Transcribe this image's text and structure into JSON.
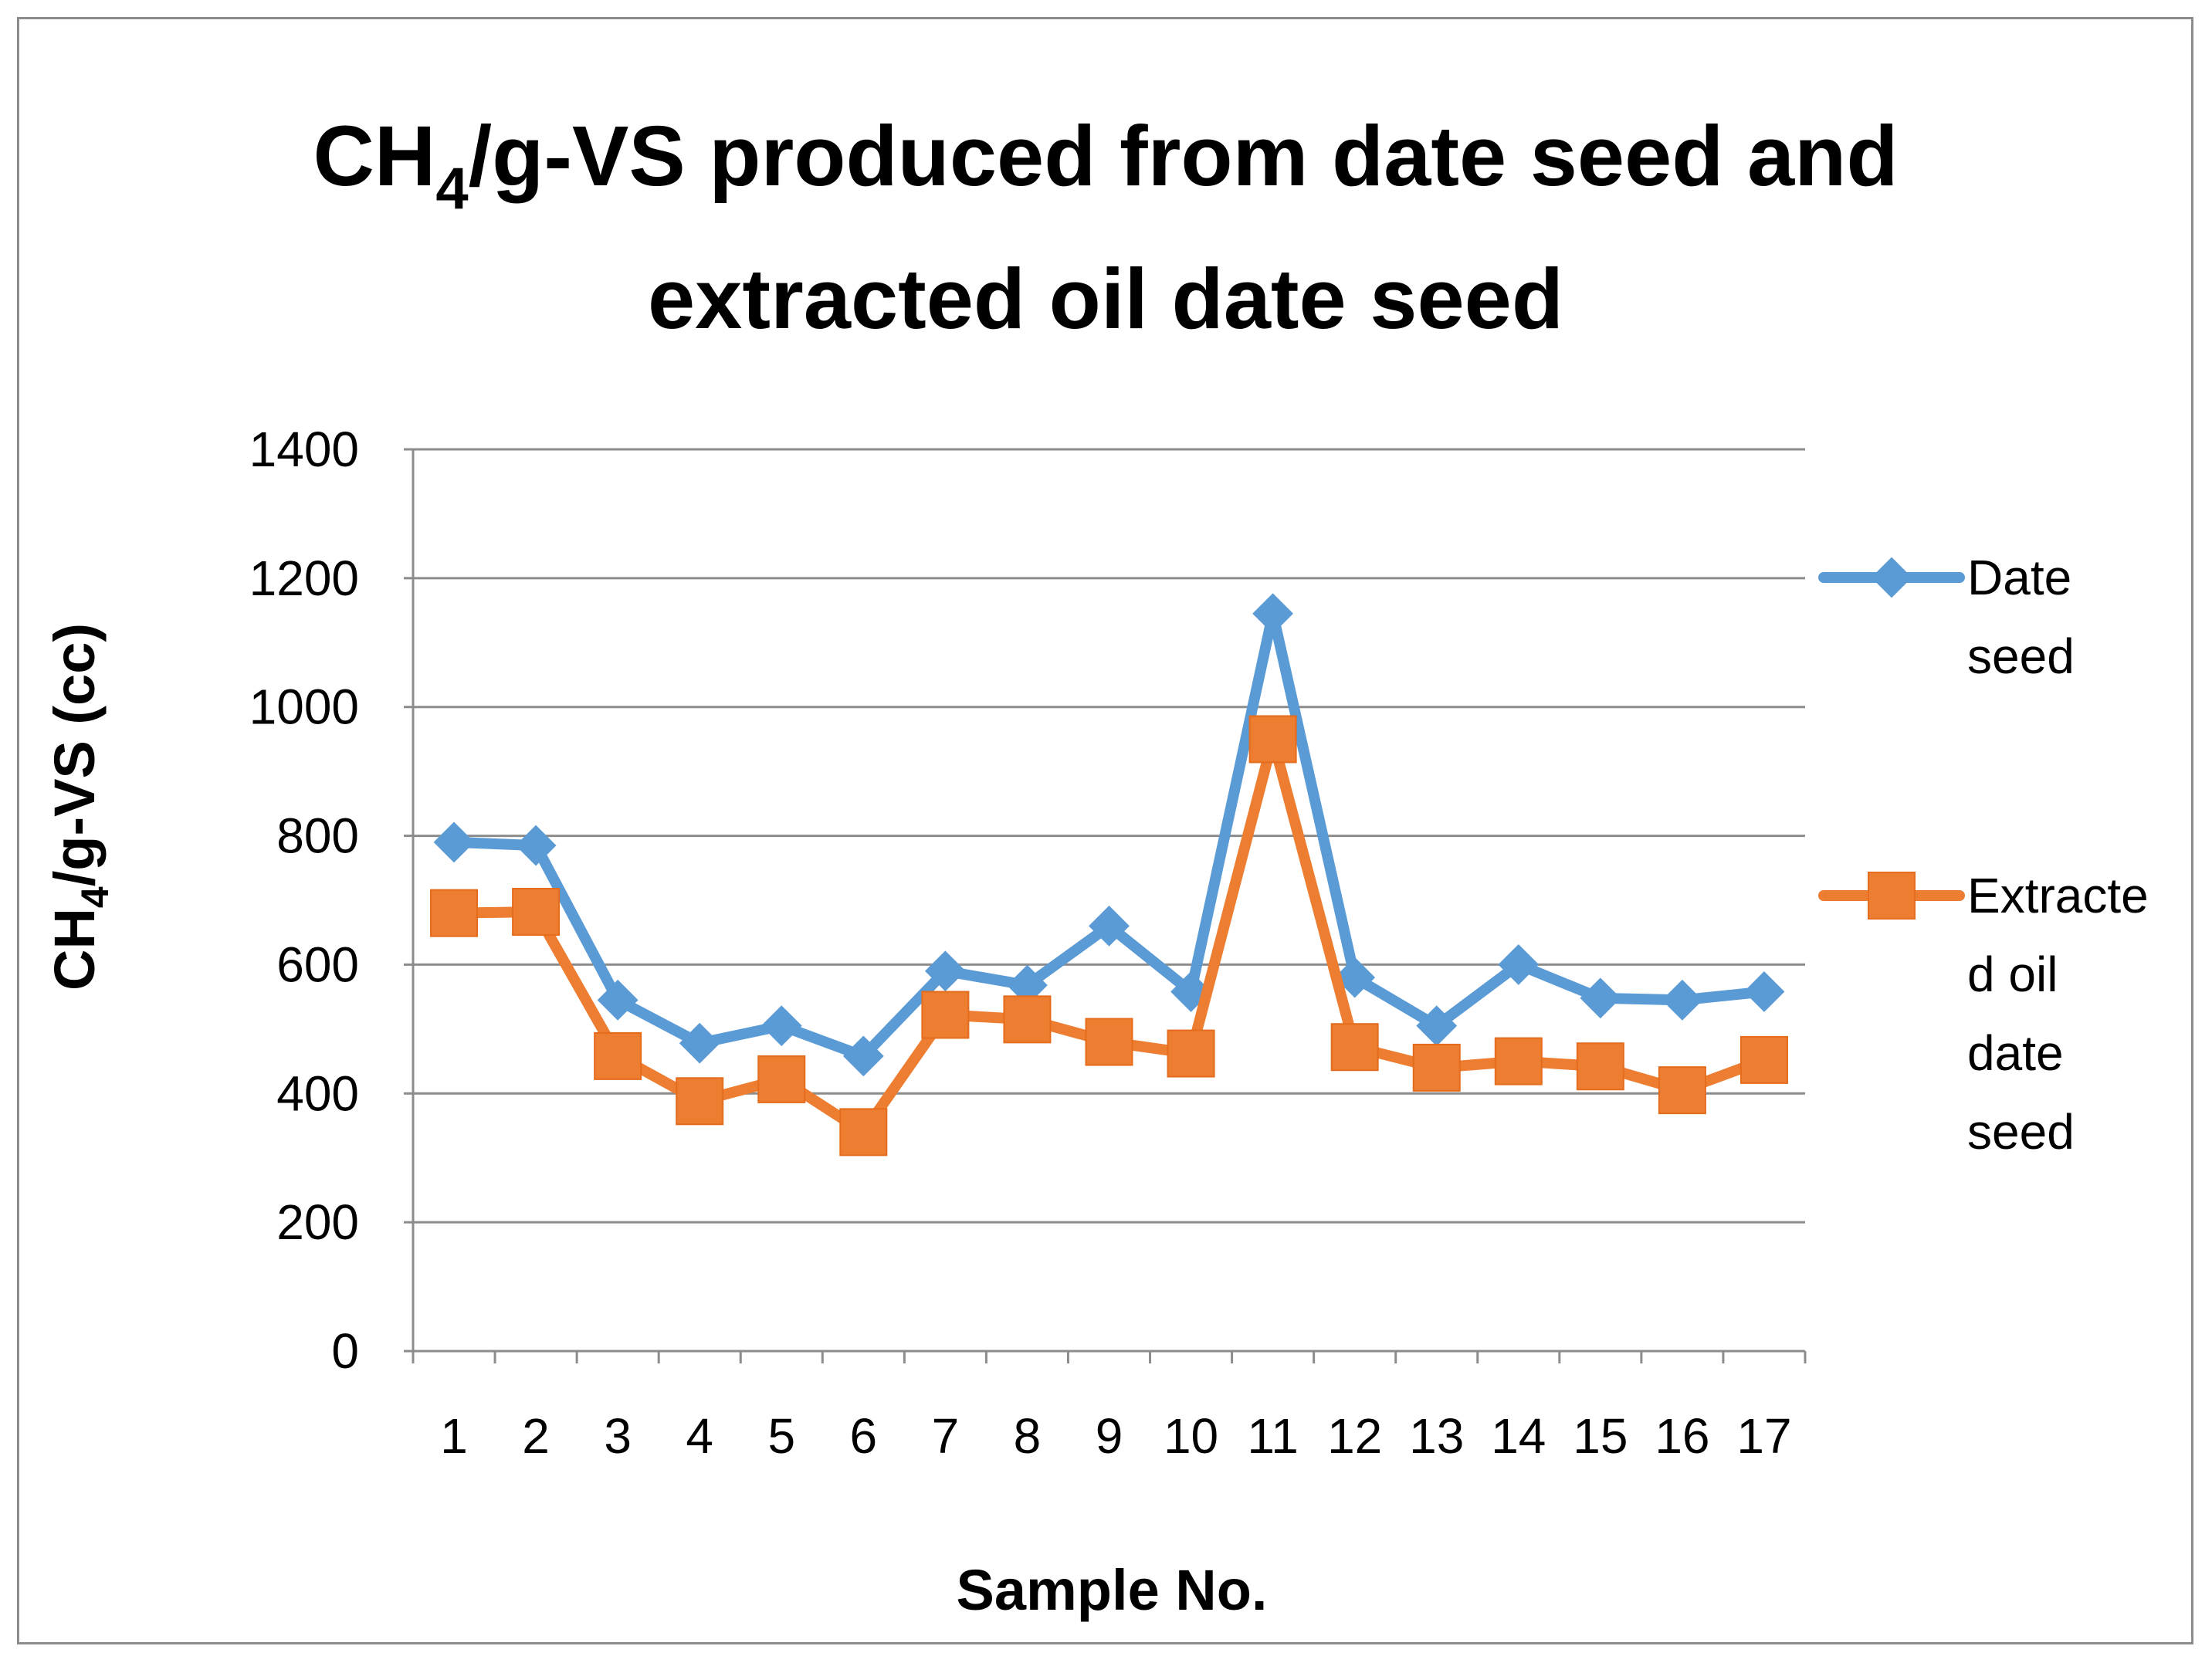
{
  "chart_data": {
    "type": "line",
    "title_parts": {
      "prefix": "CH",
      "subscript": "4",
      "suffix": "/g-VS produced from date seed and"
    },
    "title_line2": "extracted oil date seed",
    "title": "CH4/g-VS produced from date seed and extracted oil date seed",
    "xlabel": "Sample No.",
    "ylabel_parts": {
      "prefix": "CH",
      "subscript": "4",
      "suffix": "/g-VS  (cc)"
    },
    "ylabel": "CH4/g-VS  (cc)",
    "ylim": [
      0,
      1400
    ],
    "yticks": [
      "0",
      "200",
      "400",
      "600",
      "800",
      "1000",
      "1200",
      "1400"
    ],
    "ytick_values": [
      0,
      200,
      400,
      600,
      800,
      1000,
      1200,
      1400
    ],
    "categories": [
      "1",
      "2",
      "3",
      "4",
      "5",
      "6",
      "7",
      "8",
      "9",
      "10",
      "11",
      "12",
      "13",
      "14",
      "15",
      "16",
      "17"
    ],
    "grid": true,
    "legend_position": "right",
    "series": [
      {
        "name": "Date seed",
        "legend_lines": [
          "Date",
          "seed"
        ],
        "color": "#5b9bd5",
        "marker": "diamond",
        "values": [
          790,
          785,
          545,
          478,
          505,
          458,
          590,
          568,
          660,
          558,
          1145,
          580,
          505,
          600,
          548,
          545,
          558
        ]
      },
      {
        "name": "Extracted oil date seed",
        "legend_lines": [
          "Extracte",
          "d oil",
          "date",
          "seed"
        ],
        "color": "#ed7d31",
        "marker": "square",
        "values": [
          680,
          682,
          458,
          388,
          422,
          340,
          522,
          515,
          480,
          462,
          950,
          472,
          440,
          450,
          442,
          405,
          452
        ]
      }
    ]
  }
}
